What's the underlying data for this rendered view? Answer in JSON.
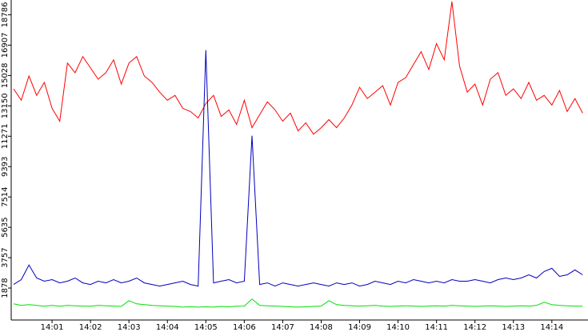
{
  "chart_data": {
    "type": "line",
    "x": [
      0,
      0.2,
      0.4,
      0.6,
      0.8,
      1,
      1.2,
      1.4,
      1.6,
      1.8,
      2,
      2.2,
      2.4,
      2.6,
      2.8,
      3,
      3.2,
      3.4,
      3.6,
      3.8,
      4,
      4.2,
      4.4,
      4.6,
      4.8,
      5,
      5.2,
      5.4,
      5.6,
      5.8,
      6,
      6.2,
      6.4,
      6.6,
      6.8,
      7,
      7.2,
      7.4,
      7.6,
      7.8,
      8,
      8.2,
      8.4,
      8.6,
      8.8,
      9,
      9.2,
      9.4,
      9.6,
      9.8,
      10,
      10.2,
      10.4,
      10.6,
      10.8,
      11,
      11.2,
      11.4,
      11.6,
      11.8,
      12,
      12.2,
      12.4,
      12.6,
      12.8,
      13,
      13.2,
      13.4,
      13.6,
      13.8,
      14,
      14.2,
      14.4,
      14.6,
      14.8
    ],
    "series": [
      {
        "color": "#ff0000",
        "values": [
          14200,
          13500,
          15000,
          13800,
          14600,
          13000,
          12200,
          15800,
          15200,
          16200,
          15500,
          14800,
          15200,
          16000,
          14500,
          15800,
          16200,
          15000,
          14600,
          14000,
          13500,
          13800,
          13000,
          12800,
          12400,
          13300,
          13800,
          12500,
          12900,
          12000,
          13500,
          11800,
          12600,
          13400,
          12900,
          12200,
          12700,
          11600,
          12100,
          11400,
          11800,
          12300,
          11800,
          12400,
          13200,
          14300,
          13600,
          14000,
          14400,
          13200,
          14600,
          14900,
          15700,
          16500,
          15400,
          17000,
          16000,
          19600,
          15600,
          14000,
          14500,
          13200,
          14800,
          15200,
          13800,
          14200,
          13600,
          14600,
          13500,
          13800,
          13200,
          14100,
          12800,
          13600,
          12700
        ]
      },
      {
        "color": "#0000c0",
        "values": [
          2100,
          2400,
          3300,
          2500,
          2300,
          2400,
          2200,
          2300,
          2500,
          2200,
          2100,
          2300,
          2200,
          2400,
          2200,
          2300,
          2500,
          2200,
          2100,
          2000,
          2100,
          2200,
          2300,
          2100,
          2000,
          16600,
          2200,
          2300,
          2400,
          2200,
          2300,
          11300,
          2100,
          2200,
          2000,
          2200,
          2100,
          2000,
          2100,
          2200,
          2100,
          2000,
          2200,
          2100,
          2200,
          2000,
          2100,
          2300,
          2200,
          2100,
          2300,
          2200,
          2400,
          2300,
          2200,
          2300,
          2200,
          2400,
          2300,
          2300,
          2400,
          2300,
          2200,
          2400,
          2500,
          2400,
          2500,
          2700,
          2500,
          2900,
          3100,
          2600,
          2700,
          3000,
          2700
        ]
      },
      {
        "color": "#00e000",
        "values": [
          900,
          800,
          850,
          800,
          750,
          800,
          750,
          800,
          780,
          760,
          750,
          800,
          780,
          760,
          740,
          1100,
          900,
          850,
          800,
          780,
          760,
          740,
          700,
          720,
          700,
          720,
          700,
          740,
          720,
          750,
          760,
          1200,
          800,
          780,
          760,
          740,
          720,
          700,
          720,
          740,
          760,
          1100,
          850,
          800,
          780,
          760,
          780,
          800,
          760,
          740,
          760,
          780,
          760,
          740,
          760,
          780,
          760,
          800,
          780,
          760,
          740,
          760,
          780,
          760,
          740,
          760,
          780,
          760,
          800,
          1000,
          850,
          800,
          780,
          760,
          750
        ]
      }
    ],
    "xlim": [
      0,
      14.94
    ],
    "xticks": [
      {
        "value": 1,
        "label": "14:01"
      },
      {
        "value": 2,
        "label": "14:02"
      },
      {
        "value": 3,
        "label": "14:03"
      },
      {
        "value": 4,
        "label": "14:04"
      },
      {
        "value": 5,
        "label": "14:05"
      },
      {
        "value": 6,
        "label": "14:06"
      },
      {
        "value": 7,
        "label": "14:07"
      },
      {
        "value": 8,
        "label": "14:08"
      },
      {
        "value": 9,
        "label": "14:09"
      },
      {
        "value": 10,
        "label": "14:10"
      },
      {
        "value": 11,
        "label": "14:11"
      },
      {
        "value": 12,
        "label": "14:12"
      },
      {
        "value": 13,
        "label": "14:13"
      },
      {
        "value": 14,
        "label": "14:14"
      }
    ],
    "ylim": [
      0,
      19700
    ],
    "yticks": [
      1878,
      3757,
      5635,
      7514,
      9393,
      11271,
      13150,
      15028,
      16907,
      18786
    ]
  }
}
